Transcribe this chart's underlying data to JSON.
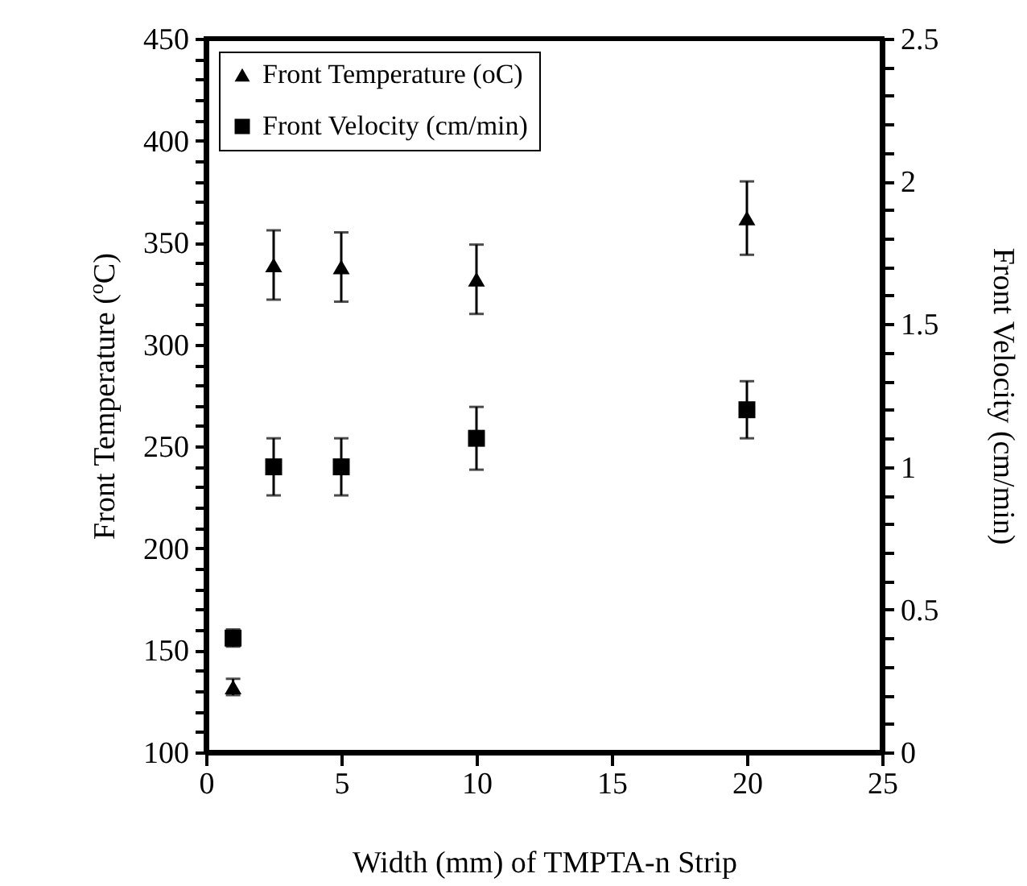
{
  "chart_data": {
    "type": "scatter",
    "xlabel": "Width (mm) of TMPTA-n Strip",
    "ylabel": "Front Temperature ($^{o}$C)",
    "y2label": "Front Velocity (cm/min)",
    "x": [
      1,
      2.5,
      5,
      10,
      20
    ],
    "xlim": [
      0,
      25
    ],
    "xticks": [
      0,
      5,
      10,
      15,
      20,
      25
    ],
    "ylim": [
      100,
      450
    ],
    "yticks": [
      100,
      {
        "value": 110,
        "label": null
      },
      {
        "value": 120,
        "label": null
      },
      {
        "value": 130,
        "label": null
      },
      {
        "value": 140,
        "label": null
      },
      150,
      {
        "value": 160,
        "label": null
      },
      {
        "value": 170,
        "label": null
      },
      {
        "value": 180,
        "label": null
      },
      {
        "value": 190,
        "label": null
      },
      200,
      {
        "value": 210,
        "label": null
      },
      {
        "value": 220,
        "label": null
      },
      {
        "value": 230,
        "label": null
      },
      {
        "value": 240,
        "label": null
      },
      250,
      {
        "value": 260,
        "label": null
      },
      {
        "value": 270,
        "label": null
      },
      {
        "value": 280,
        "label": null
      },
      {
        "value": 290,
        "label": null
      },
      300,
      {
        "value": 310,
        "label": null
      },
      {
        "value": 320,
        "label": null
      },
      {
        "value": 330,
        "label": null
      },
      {
        "value": 340,
        "label": null
      },
      350,
      {
        "value": 360,
        "label": null
      },
      {
        "value": 370,
        "label": null
      },
      {
        "value": 380,
        "label": null
      },
      {
        "value": 390,
        "label": null
      },
      400,
      {
        "value": 410,
        "label": null
      },
      {
        "value": 420,
        "label": null
      },
      {
        "value": 430,
        "label": null
      },
      {
        "value": 440,
        "label": null
      },
      450
    ],
    "y2lim": [
      0,
      2.5
    ],
    "y2ticks": [
      0,
      {
        "value": 0.1,
        "label": null
      },
      {
        "value": 0.2,
        "label": null
      },
      {
        "value": 0.3,
        "label": null
      },
      {
        "value": 0.4,
        "label": null
      },
      0.5,
      {
        "value": 0.6,
        "label": null
      },
      {
        "value": 0.7,
        "label": null
      },
      {
        "value": 0.8,
        "label": null
      },
      {
        "value": 0.9,
        "label": null
      },
      1,
      {
        "value": 1.1,
        "label": null
      },
      {
        "value": 1.2,
        "label": null
      },
      {
        "value": 1.3,
        "label": null
      },
      {
        "value": 1.4,
        "label": null
      },
      1.5,
      {
        "value": 1.6,
        "label": null
      },
      {
        "value": 1.7,
        "label": null
      },
      {
        "value": 1.8,
        "label": null
      },
      {
        "value": 1.9,
        "label": null
      },
      2,
      {
        "value": 2.1,
        "label": null
      },
      {
        "value": 2.2,
        "label": null
      },
      {
        "value": 2.3,
        "label": null
      },
      {
        "value": 2.4,
        "label": null
      },
      2.5
    ],
    "legend": "top",
    "grid": false,
    "series": [
      {
        "name": "Front Temperature (oC)",
        "color": "#000000",
        "marker": "triangle",
        "values": [
          132,
          339,
          338,
          332,
          362
        ],
        "errors": [
          4,
          17,
          17,
          17,
          18
        ]
      },
      {
        "name": "Front Velocity (cm/min)",
        "color": "#000000",
        "marker": "square",
        "axis": "y2",
        "values": [
          0.4,
          1.0,
          1.0,
          1.1,
          1.2
        ],
        "errors": [
          0.03,
          0.1,
          0.1,
          0.11,
          0.1
        ]
      }
    ]
  }
}
